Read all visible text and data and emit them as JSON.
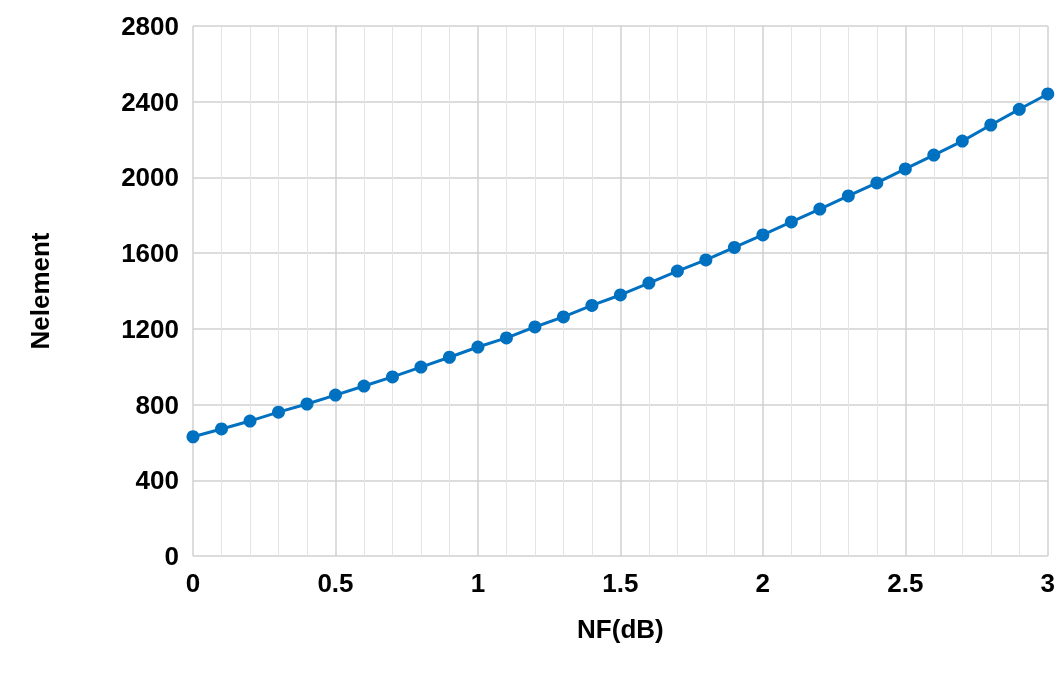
{
  "chart_data": {
    "type": "line",
    "xlabel": "NF(dB)",
    "ylabel": "Nelement",
    "x": [
      0,
      0.1,
      0.2,
      0.3,
      0.4,
      0.5,
      0.6,
      0.7,
      0.8,
      0.9,
      1,
      1.1,
      1.2,
      1.3,
      1.4,
      1.5,
      1.6,
      1.7,
      1.8,
      1.9,
      2,
      2.1,
      2.2,
      2.3,
      2.4,
      2.5,
      2.6,
      2.7,
      2.8,
      2.9,
      3
    ],
    "series": [
      {
        "color": "#0070c0",
        "values": [
          630,
          671,
          713,
          760,
          803,
          850,
          898,
          946,
          998,
          1050,
          1104,
          1152,
          1210,
          1263,
          1324,
          1379,
          1442,
          1505,
          1564,
          1630,
          1696,
          1765,
          1833,
          1902,
          1971,
          2045,
          2118,
          2192,
          2277,
          2360,
          2441
        ]
      }
    ],
    "xlim": [
      0,
      3
    ],
    "xticks": [
      0,
      0.5,
      1,
      1.5,
      2,
      2.5,
      3
    ],
    "ylim": [
      0,
      2800
    ],
    "yticks": [
      0,
      400,
      800,
      1200,
      1600,
      2000,
      2400,
      2800
    ],
    "grid": true,
    "marker": "circle",
    "line_style": "solid"
  }
}
